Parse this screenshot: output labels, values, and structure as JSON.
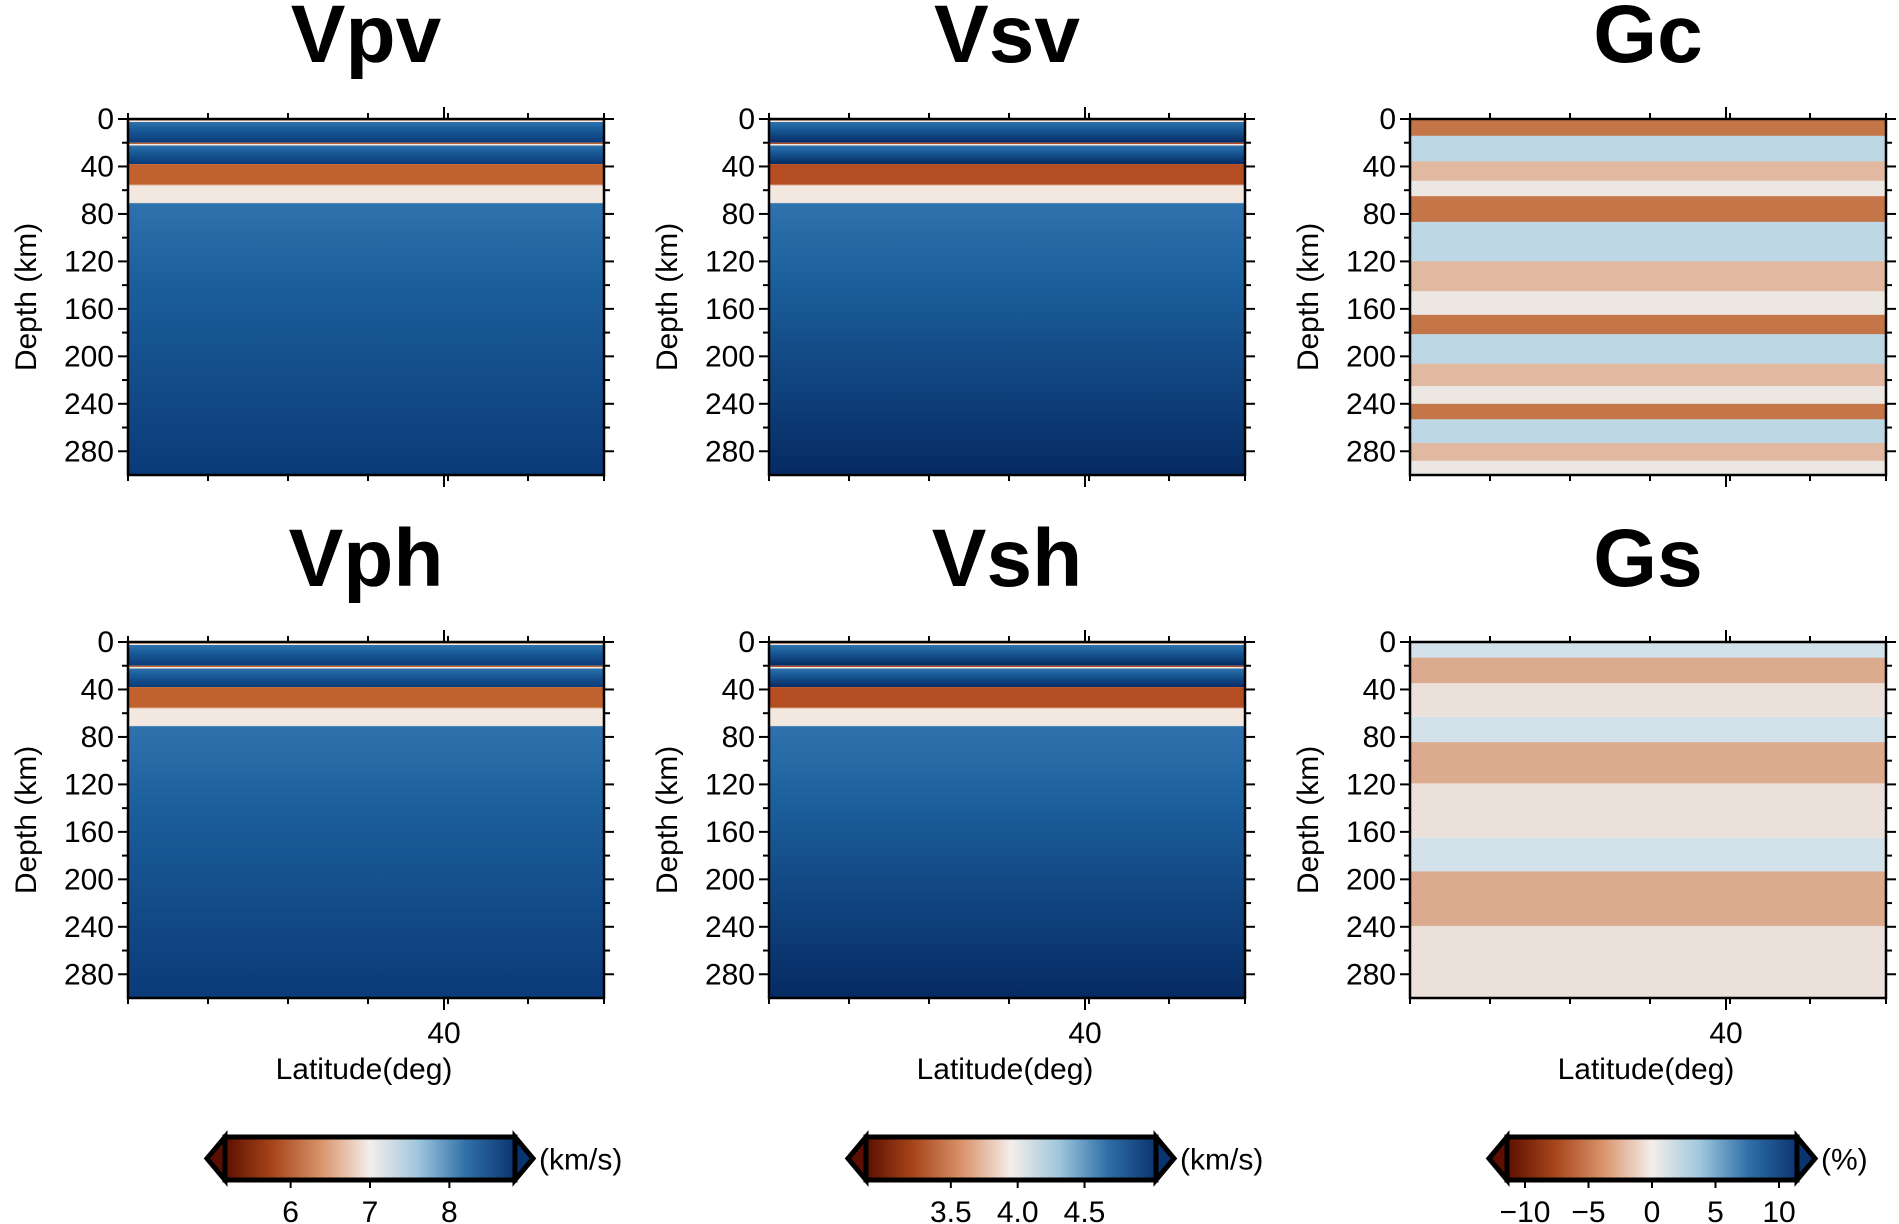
{
  "chart_data": [
    {
      "type": "heatmap",
      "title": "Vpv",
      "ylabel": "Depth (km)",
      "xlabel": "",
      "y_ticks": [
        "0",
        "40",
        "80",
        "120",
        "160",
        "200",
        "240",
        "280"
      ],
      "x_ticks": [],
      "ylim": [
        0,
        300
      ],
      "y_reversed": true,
      "colormap": "velocity",
      "layers": [
        {
          "top": 0,
          "bottom": 20,
          "value": "low",
          "color": "#c0622e"
        },
        {
          "top": 20,
          "bottom": 38,
          "value": "transition",
          "color": "#f2e8e0"
        },
        {
          "top": 38,
          "bottom": 300,
          "value": "high",
          "color": "#114d8a"
        }
      ]
    },
    {
      "type": "heatmap",
      "title": "Vsv",
      "ylabel": "Depth (km)",
      "xlabel": "",
      "y_ticks": [
        "0",
        "40",
        "80",
        "120",
        "160",
        "200",
        "240",
        "280"
      ],
      "x_ticks": [],
      "ylim": [
        0,
        300
      ],
      "y_reversed": true,
      "colormap": "velocity",
      "layers": [
        {
          "top": 0,
          "bottom": 20,
          "value": "low",
          "color": "#b44d22"
        },
        {
          "top": 20,
          "bottom": 38,
          "value": "transition",
          "color": "#f2e8e0"
        },
        {
          "top": 38,
          "bottom": 300,
          "value": "high",
          "color": "#0f4a88"
        }
      ]
    },
    {
      "type": "heatmap",
      "title": "Gc",
      "ylabel": "Depth (km)",
      "xlabel": "",
      "y_ticks": [
        "0",
        "40",
        "80",
        "120",
        "160",
        "200",
        "240",
        "280"
      ],
      "x_ticks": [],
      "ylim": [
        0,
        300
      ],
      "y_reversed": true,
      "colormap": "percent",
      "layers": [
        {
          "top": 0,
          "bottom": 65,
          "value": "negative",
          "color": "#c47649"
        },
        {
          "top": 65,
          "bottom": 165,
          "value": "positive",
          "color": "#bdd7e4"
        },
        {
          "top": 165,
          "bottom": 240,
          "value": "negative",
          "color": "#e1b9a0"
        },
        {
          "top": 240,
          "bottom": 300,
          "value": "near zero",
          "color": "#ece7e3"
        }
      ]
    },
    {
      "type": "heatmap",
      "title": "Vph",
      "ylabel": "Depth (km)",
      "xlabel": "Latitude(deg)",
      "y_ticks": [
        "0",
        "40",
        "80",
        "120",
        "160",
        "200",
        "240",
        "280"
      ],
      "x_ticks": [
        "40"
      ],
      "ylim": [
        0,
        300
      ],
      "y_reversed": true,
      "colormap": "velocity",
      "layers": [
        {
          "top": 0,
          "bottom": 20,
          "value": "low",
          "color": "#c0622e"
        },
        {
          "top": 20,
          "bottom": 38,
          "value": "transition",
          "color": "#f2e8e0"
        },
        {
          "top": 38,
          "bottom": 300,
          "value": "high",
          "color": "#114d8a"
        }
      ]
    },
    {
      "type": "heatmap",
      "title": "Vsh",
      "ylabel": "Depth (km)",
      "xlabel": "Latitude(deg)",
      "y_ticks": [
        "0",
        "40",
        "80",
        "120",
        "160",
        "200",
        "240",
        "280"
      ],
      "x_ticks": [
        "40"
      ],
      "ylim": [
        0,
        300
      ],
      "y_reversed": true,
      "colormap": "velocity",
      "layers": [
        {
          "top": 0,
          "bottom": 20,
          "value": "low",
          "color": "#b44d22"
        },
        {
          "top": 20,
          "bottom": 38,
          "value": "transition",
          "color": "#f2e8e0"
        },
        {
          "top": 38,
          "bottom": 300,
          "value": "high",
          "color": "#0f4a88"
        }
      ]
    },
    {
      "type": "heatmap",
      "title": "Gs",
      "ylabel": "Depth (km)",
      "xlabel": "Latitude(deg)",
      "y_ticks": [
        "0",
        "40",
        "80",
        "120",
        "160",
        "200",
        "240",
        "280"
      ],
      "x_ticks": [
        "40"
      ],
      "ylim": [
        0,
        300
      ],
      "y_reversed": true,
      "colormap": "percent",
      "layers": [
        {
          "top": 0,
          "bottom": 63,
          "value": "positive",
          "color": "#d3e2ea"
        },
        {
          "top": 63,
          "bottom": 165,
          "value": "negative",
          "color": "#dcaa8e"
        },
        {
          "top": 165,
          "bottom": 300,
          "value": "near zero",
          "color": "#ebe1da"
        }
      ]
    }
  ],
  "colorbars": [
    {
      "unit": "(km/s)",
      "range": [
        5.4,
        8.6
      ],
      "ticks": [
        {
          "v": 6,
          "label": "6"
        },
        {
          "v": 7,
          "label": "7"
        },
        {
          "v": 8,
          "label": "8"
        }
      ]
    },
    {
      "unit": "(km/s)",
      "range": [
        3.0,
        4.9
      ],
      "ticks": [
        {
          "v": 3.5,
          "label": "3.5"
        },
        {
          "v": 4.0,
          "label": "4.0"
        },
        {
          "v": 4.5,
          "label": "4.5"
        }
      ]
    },
    {
      "unit": "(%)",
      "range": [
        -10,
        10
      ],
      "ticks": [
        {
          "v": -10,
          "label": "−10"
        },
        {
          "v": -5,
          "label": "−5"
        },
        {
          "v": 0,
          "label": "0"
        },
        {
          "v": 5,
          "label": "5"
        },
        {
          "v": 10,
          "label": "10"
        }
      ]
    }
  ],
  "colors": {
    "ramp": [
      "#5c0f00",
      "#a9461b",
      "#d9946c",
      "#f4eeea",
      "#9ec6dd",
      "#2f6fa7",
      "#0a3470"
    ]
  }
}
